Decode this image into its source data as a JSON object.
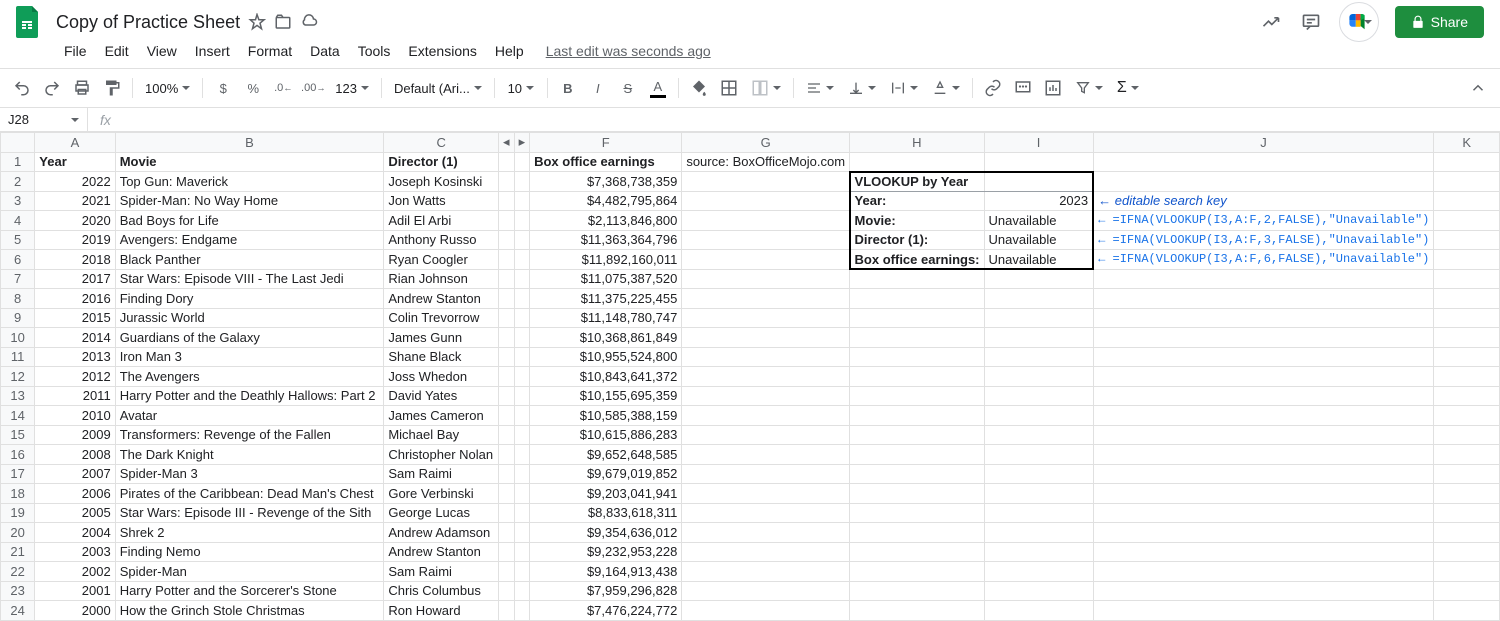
{
  "header": {
    "doc_title": "Copy of Practice Sheet",
    "share_label": "Share"
  },
  "menubar": {
    "items": [
      "File",
      "Edit",
      "View",
      "Insert",
      "Format",
      "Data",
      "Tools",
      "Extensions",
      "Help"
    ],
    "last_edit": "Last edit was seconds ago"
  },
  "toolbar": {
    "zoom": "100%",
    "font": "Default (Ari...",
    "font_size": "10"
  },
  "formula_bar": {
    "name_box": "J28",
    "fx_label": "fx"
  },
  "columns": [
    "A",
    "B",
    "C",
    "F",
    "G",
    "H",
    "I",
    "J",
    "K"
  ],
  "col_widths": {
    "A": 95,
    "B": 270,
    "C": 115,
    "F": 160,
    "G": 160,
    "H": 120,
    "I": 120,
    "J": 340,
    "K": 82
  },
  "row_count": 24,
  "headers_row": {
    "A": "Year",
    "B": "Movie",
    "C": "Director (1)",
    "F": "Box office earnings",
    "G_prefix": "source: ",
    "G_link": "BoxOfficeMojo.com"
  },
  "data_rows": [
    {
      "year": "2022",
      "movie": "Top Gun: Maverick",
      "director": "Joseph Kosinski",
      "earnings": "$7,368,738,359"
    },
    {
      "year": "2021",
      "movie": "Spider-Man: No Way Home",
      "director": "Jon Watts",
      "earnings": "$4,482,795,864"
    },
    {
      "year": "2020",
      "movie": "Bad Boys for Life",
      "director": "Adil El Arbi",
      "earnings": "$2,113,846,800"
    },
    {
      "year": "2019",
      "movie": "Avengers: Endgame",
      "director": "Anthony Russo",
      "earnings": "$11,363,364,796"
    },
    {
      "year": "2018",
      "movie": "Black Panther",
      "director": "Ryan Coogler",
      "earnings": "$11,892,160,011"
    },
    {
      "year": "2017",
      "movie": "Star Wars: Episode VIII - The Last Jedi",
      "director": "Rian Johnson",
      "earnings": "$11,075,387,520"
    },
    {
      "year": "2016",
      "movie": "Finding Dory",
      "director": "Andrew Stanton",
      "earnings": "$11,375,225,455"
    },
    {
      "year": "2015",
      "movie": "Jurassic World",
      "director": "Colin Trevorrow",
      "earnings": "$11,148,780,747"
    },
    {
      "year": "2014",
      "movie": "Guardians of the Galaxy",
      "director": "James Gunn",
      "earnings": "$10,368,861,849"
    },
    {
      "year": "2013",
      "movie": "Iron Man 3",
      "director": "Shane Black",
      "earnings": "$10,955,524,800"
    },
    {
      "year": "2012",
      "movie": "The Avengers",
      "director": "Joss Whedon",
      "earnings": "$10,843,641,372"
    },
    {
      "year": "2011",
      "movie": "Harry Potter and the Deathly Hallows: Part 2",
      "director": "David Yates",
      "earnings": "$10,155,695,359"
    },
    {
      "year": "2010",
      "movie": "Avatar",
      "director": "James Cameron",
      "earnings": "$10,585,388,159"
    },
    {
      "year": "2009",
      "movie": "Transformers: Revenge of the Fallen",
      "director": "Michael Bay",
      "earnings": "$10,615,886,283"
    },
    {
      "year": "2008",
      "movie": "The Dark Knight",
      "director": "Christopher Nolan",
      "earnings": "$9,652,648,585"
    },
    {
      "year": "2007",
      "movie": "Spider-Man 3",
      "director": "Sam Raimi",
      "earnings": "$9,679,019,852"
    },
    {
      "year": "2006",
      "movie": "Pirates of the Caribbean: Dead Man's Chest",
      "director": "Gore Verbinski",
      "earnings": "$9,203,041,941"
    },
    {
      "year": "2005",
      "movie": "Star Wars: Episode III - Revenge of the Sith",
      "director": "George Lucas",
      "earnings": "$8,833,618,311"
    },
    {
      "year": "2004",
      "movie": "Shrek 2",
      "director": "Andrew Adamson",
      "earnings": "$9,354,636,012"
    },
    {
      "year": "2003",
      "movie": "Finding Nemo",
      "director": "Andrew Stanton",
      "earnings": "$9,232,953,228"
    },
    {
      "year": "2002",
      "movie": "Spider-Man",
      "director": "Sam Raimi",
      "earnings": "$9,164,913,438"
    },
    {
      "year": "2001",
      "movie": "Harry Potter and the Sorcerer's Stone",
      "director": "Chris Columbus",
      "earnings": "$7,959,296,828"
    },
    {
      "year": "2000",
      "movie": "How the Grinch Stole Christmas",
      "director": "Ron Howard",
      "earnings": "$7,476,224,772"
    }
  ],
  "vlookup": {
    "title": "VLOOKUP by Year",
    "rows": [
      {
        "label": "Year:",
        "value": "2023",
        "note": "← editable search key",
        "note_class": "italic"
      },
      {
        "label": "Movie:",
        "value": "Unavailable",
        "note": "← =IFNA(VLOOKUP(I3,A:F,2,FALSE),\"Unavailable\")",
        "note_class": "formula"
      },
      {
        "label": "Director (1):",
        "value": "Unavailable",
        "note": "← =IFNA(VLOOKUP(I3,A:F,3,FALSE),\"Unavailable\")",
        "note_class": "formula"
      },
      {
        "label": "Box office earnings:",
        "value": "Unavailable",
        "note": "← =IFNA(VLOOKUP(I3,A:F,6,FALSE),\"Unavailable\")",
        "note_class": "formula"
      }
    ]
  },
  "colors": {
    "share_bg": "#1e8e3e",
    "link": "#1155cc",
    "formula": "#1a73e8",
    "grid_border": "#e0e0e0",
    "header_bg": "#f8f9fa"
  }
}
